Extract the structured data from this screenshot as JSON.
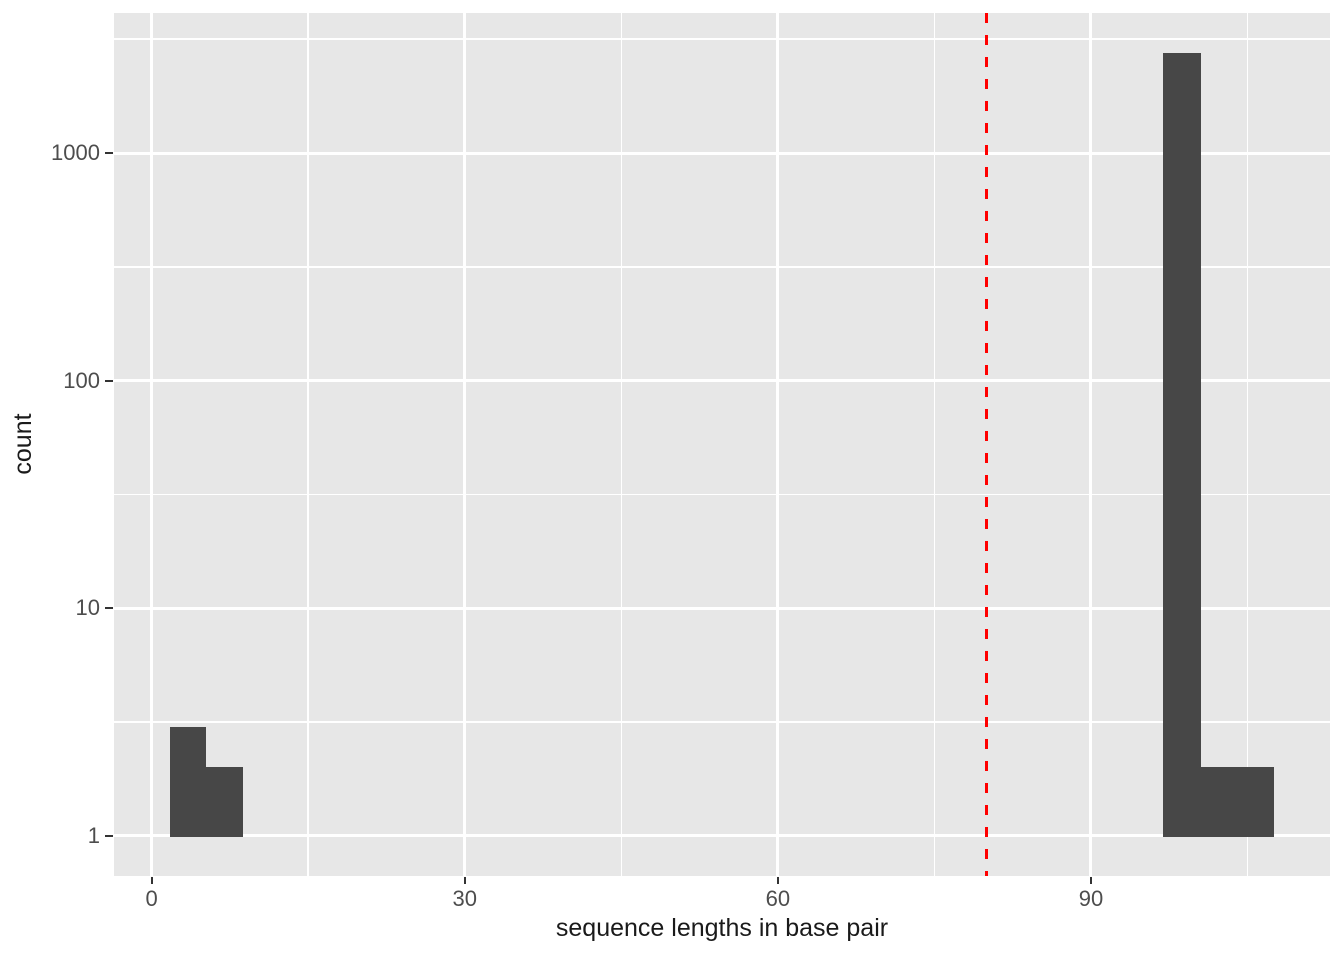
{
  "figure": {
    "background_color": "#FFFFFF",
    "panel_background_color": "#E7E7E7",
    "grid_color": "#FFFFFF",
    "bar_color": "#474747",
    "tick_text_color": "#4D4D4D",
    "axis_title_color": "#1A1A1A",
    "vline_color": "#FF0000"
  },
  "chart_data": {
    "type": "bar",
    "subtype": "histogram",
    "title": "",
    "xlabel": "sequence lengths in base pair",
    "ylabel": "count",
    "y_scale": "log10",
    "grid": true,
    "legend": "none",
    "x_ticks": [
      0,
      30,
      60,
      90
    ],
    "x_minor_ticks": [
      15,
      45,
      75,
      105
    ],
    "y_ticks": [
      1,
      10,
      100,
      1000
    ],
    "y_minor_log10": [
      0.5,
      1.5,
      2.5,
      3.5
    ],
    "xlim": [
      -3.6,
      112.9
    ],
    "ylim_log10": [
      -0.176,
      3.615
    ],
    "baseline_count": 1,
    "bars": [
      {
        "x_start": 1.75,
        "x_end": 5.25,
        "count": 3
      },
      {
        "x_start": 5.25,
        "x_end": 8.75,
        "count": 2
      },
      {
        "x_start": 96.9,
        "x_end": 100.5,
        "count": 2750
      },
      {
        "x_start": 100.5,
        "x_end": 107.5,
        "count": 2
      }
    ],
    "vline": {
      "x": 80,
      "line_style": "dashed",
      "color": "#FF0000"
    }
  }
}
